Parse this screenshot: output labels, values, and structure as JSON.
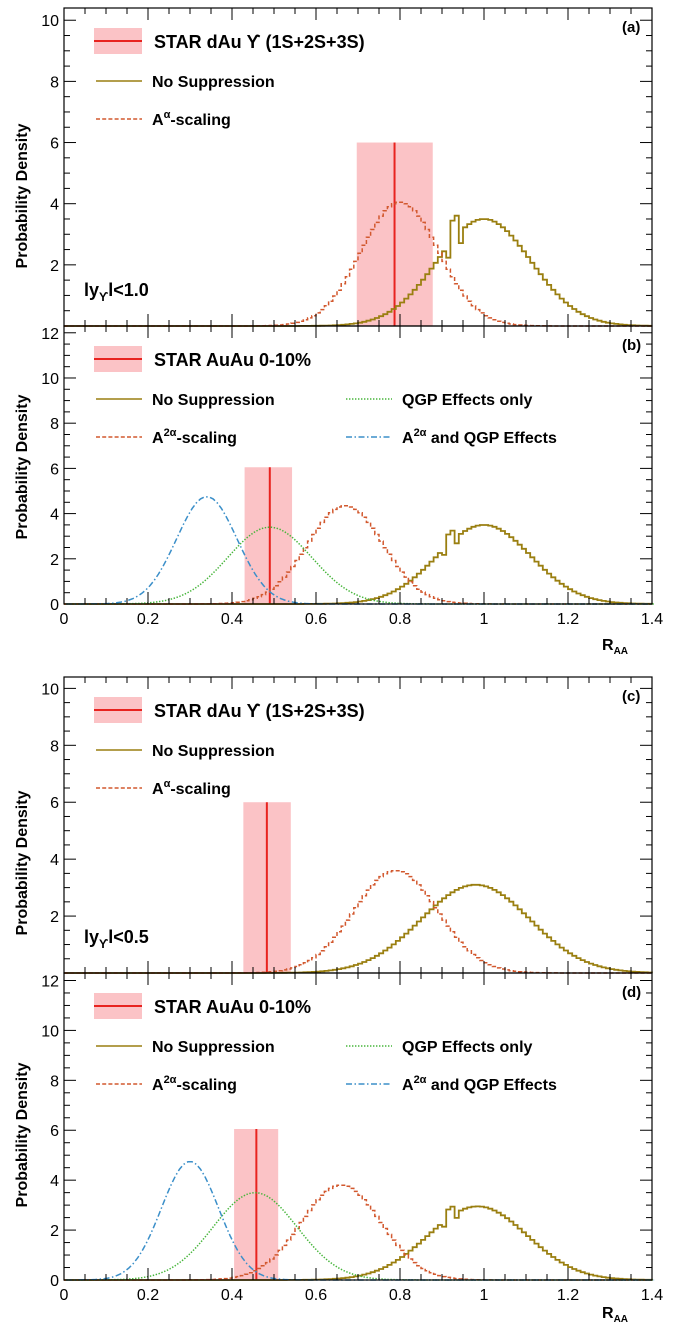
{
  "figure": {
    "y_axis_title": "Probability Density",
    "x_axis_title_main": "R",
    "x_axis_title_sub": "AA"
  },
  "colors": {
    "star_line": "#e8231f",
    "star_band": "#fbc3c6",
    "no_suppression": "#9a7f10",
    "a_alpha": "#d2582e",
    "qgp": "#46b53a",
    "combined": "#3b8fc9",
    "axis": "#000000"
  },
  "chart_data": [
    {
      "id": "a",
      "type": "line",
      "panel_label": "(a)",
      "annotation": {
        "pre": "ly",
        "sub": "ϒ",
        "post": "l<1.0"
      },
      "xlim": [
        0,
        1.4
      ],
      "ylim": [
        0,
        10.4
      ],
      "yticks": [
        2,
        4,
        6,
        8,
        10
      ],
      "show_xtick_labels": false,
      "measurement": {
        "name": "STAR dAu ϒ (1S+2S+3S)",
        "label": "STAR dAu ϒ (1S+2S+3S)",
        "value": 0.787,
        "band": [
          0.697,
          0.878
        ],
        "band_height": 6.0
      },
      "legend": [
        {
          "key": "no_suppression",
          "main": "No Suppression",
          "sup": "",
          "tail": ""
        },
        {
          "key": "a_alpha",
          "main": "A",
          "sup": "α",
          "tail": "-scaling"
        }
      ],
      "series": [
        {
          "key": "no_suppression",
          "name": "No Suppression",
          "style": "solid",
          "step": true,
          "mu": 1.0,
          "sigma": 0.112,
          "peak": 3.5,
          "glitch": {
            "x": 0.93,
            "amp": 0.65
          }
        },
        {
          "key": "a_alpha",
          "name": "A^α-scaling",
          "style": "dotted",
          "step": true,
          "mu": 0.8,
          "sigma": 0.092,
          "peak": 4.05
        }
      ]
    },
    {
      "id": "b",
      "type": "line",
      "panel_label": "(b)",
      "annotation": null,
      "xlim": [
        0,
        1.4
      ],
      "ylim": [
        0,
        12.3
      ],
      "yticks": [
        0,
        2,
        4,
        6,
        8,
        10,
        12
      ],
      "xticks": [
        0,
        0.2,
        0.4,
        0.6,
        0.8,
        1,
        1.2,
        1.4
      ],
      "xtick_labels": [
        "0",
        "0.2",
        "0.4",
        "0.6",
        "0.8",
        "1",
        "1.2",
        "1.4"
      ],
      "show_xtick_labels": true,
      "measurement": {
        "name": "STAR AuAu 0-10%",
        "label": "STAR AuAu 0-10%",
        "value": 0.49,
        "band": [
          0.43,
          0.543
        ],
        "band_height": 6.05
      },
      "legend": [
        {
          "key": "no_suppression",
          "main": "No Suppression",
          "sup": "",
          "tail": ""
        },
        {
          "key": "qgp",
          "main": "QGP Effects only",
          "sup": "",
          "tail": ""
        },
        {
          "key": "a_alpha",
          "main": "A",
          "sup": "2α",
          "tail": "-scaling"
        },
        {
          "key": "combined",
          "main": "A",
          "sup": "2α",
          "tail": " and QGP Effects"
        }
      ],
      "series": [
        {
          "key": "no_suppression",
          "name": "No Suppression",
          "style": "solid",
          "step": true,
          "mu": 1.0,
          "sigma": 0.112,
          "peak": 3.5,
          "glitch": {
            "x": 0.92,
            "amp": 0.45
          }
        },
        {
          "key": "a_alpha",
          "name": "A^2α-scaling",
          "style": "dotted",
          "step": true,
          "mu": 0.67,
          "sigma": 0.09,
          "peak": 4.35
        },
        {
          "key": "qgp",
          "name": "QGP Effects only",
          "style": "dotted-fine",
          "step": false,
          "mu": 0.49,
          "sigma": 0.1,
          "peak": 3.4
        },
        {
          "key": "combined",
          "name": "A^2α and QGP Effects",
          "style": "dashdot",
          "step": false,
          "mu": 0.34,
          "sigma": 0.072,
          "peak": 4.75
        }
      ]
    },
    {
      "id": "c",
      "type": "line",
      "panel_label": "(c)",
      "annotation": {
        "pre": "ly",
        "sub": "ϒ",
        "post": "l<0.5"
      },
      "xlim": [
        0,
        1.4
      ],
      "ylim": [
        0,
        10.4
      ],
      "yticks": [
        2,
        4,
        6,
        8,
        10
      ],
      "show_xtick_labels": false,
      "measurement": {
        "name": "STAR dAu ϒ (1S+2S+3S)",
        "label": "STAR dAu ϒ (1S+2S+3S)",
        "value": 0.483,
        "band": [
          0.427,
          0.54
        ],
        "band_height": 6.0
      },
      "legend": [
        {
          "key": "no_suppression",
          "main": "No Suppression",
          "sup": "",
          "tail": ""
        },
        {
          "key": "a_alpha",
          "main": "A",
          "sup": "α",
          "tail": "-scaling"
        }
      ],
      "series": [
        {
          "key": "no_suppression",
          "name": "No Suppression",
          "style": "solid",
          "step": true,
          "mu": 0.98,
          "sigma": 0.13,
          "peak": 3.1
        },
        {
          "key": "a_alpha",
          "name": "A^α-scaling",
          "style": "dotted",
          "step": true,
          "mu": 0.79,
          "sigma": 0.1,
          "peak": 3.6
        }
      ]
    },
    {
      "id": "d",
      "type": "line",
      "panel_label": "(d)",
      "annotation": null,
      "xlim": [
        0,
        1.4
      ],
      "ylim": [
        0,
        12.3
      ],
      "yticks": [
        0,
        2,
        4,
        6,
        8,
        10,
        12
      ],
      "xticks": [
        0,
        0.2,
        0.4,
        0.6,
        0.8,
        1,
        1.2,
        1.4
      ],
      "xtick_labels": [
        "0",
        "0.2",
        "0.4",
        "0.6",
        "0.8",
        "1",
        "1.2",
        "1.4"
      ],
      "show_xtick_labels": true,
      "measurement": {
        "name": "STAR AuAu 0-10%",
        "label": "STAR AuAu 0-10%",
        "value": 0.458,
        "band": [
          0.405,
          0.51
        ],
        "band_height": 6.05
      },
      "legend": [
        {
          "key": "no_suppression",
          "main": "No Suppression",
          "sup": "",
          "tail": ""
        },
        {
          "key": "qgp",
          "main": "QGP Effects only",
          "sup": "",
          "tail": ""
        },
        {
          "key": "a_alpha",
          "main": "A",
          "sup": "2α",
          "tail": "-scaling"
        },
        {
          "key": "combined",
          "main": "A",
          "sup": "2α",
          "tail": " and QGP Effects"
        }
      ],
      "series": [
        {
          "key": "no_suppression",
          "name": "No Suppression",
          "style": "solid",
          "step": true,
          "mu": 0.985,
          "sigma": 0.118,
          "peak": 2.95,
          "glitch": {
            "x": 0.92,
            "amp": 0.35
          }
        },
        {
          "key": "a_alpha",
          "name": "A^2α-scaling",
          "style": "dotted",
          "step": true,
          "mu": 0.66,
          "sigma": 0.095,
          "peak": 3.8
        },
        {
          "key": "qgp",
          "name": "QGP Effects only",
          "style": "dotted-fine",
          "step": false,
          "mu": 0.455,
          "sigma": 0.1,
          "peak": 3.5
        },
        {
          "key": "combined",
          "name": "A^2α and QGP Effects",
          "style": "dashdot",
          "step": false,
          "mu": 0.3,
          "sigma": 0.068,
          "peak": 4.75
        }
      ]
    }
  ]
}
